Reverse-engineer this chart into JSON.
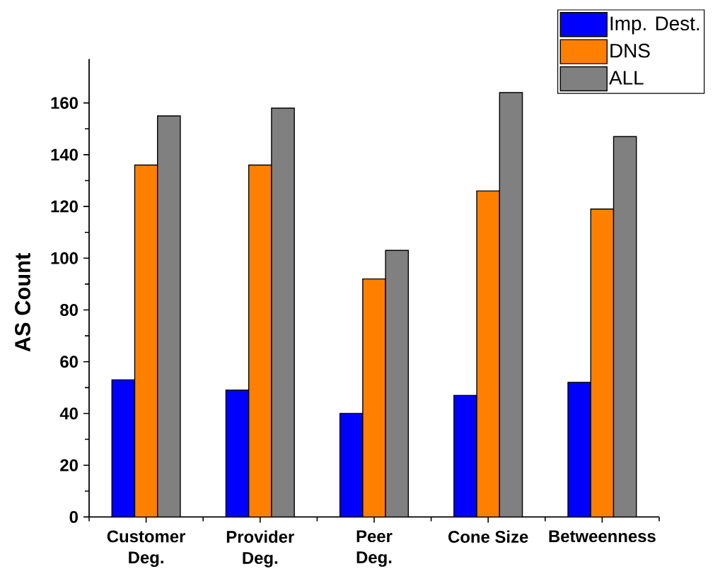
{
  "chart_data": {
    "type": "bar",
    "ylabel": "AS Count",
    "categories": [
      "Customer Deg.",
      "Provider Deg.",
      "Peer Deg.",
      "Cone Size",
      "Betweenness"
    ],
    "series": [
      {
        "name": "Imp. Dest.",
        "color": "#0000ff",
        "values": [
          53,
          49,
          40,
          47,
          52
        ]
      },
      {
        "name": "DNS",
        "color": "#ff8000",
        "values": [
          136,
          136,
          92,
          126,
          119
        ]
      },
      {
        "name": "ALL",
        "color": "#808080",
        "values": [
          155,
          158,
          103,
          164,
          147
        ]
      }
    ],
    "ylim": [
      0,
      177
    ],
    "yticks": [
      0,
      20,
      40,
      60,
      80,
      100,
      120,
      140,
      160
    ],
    "legend": "top right"
  }
}
